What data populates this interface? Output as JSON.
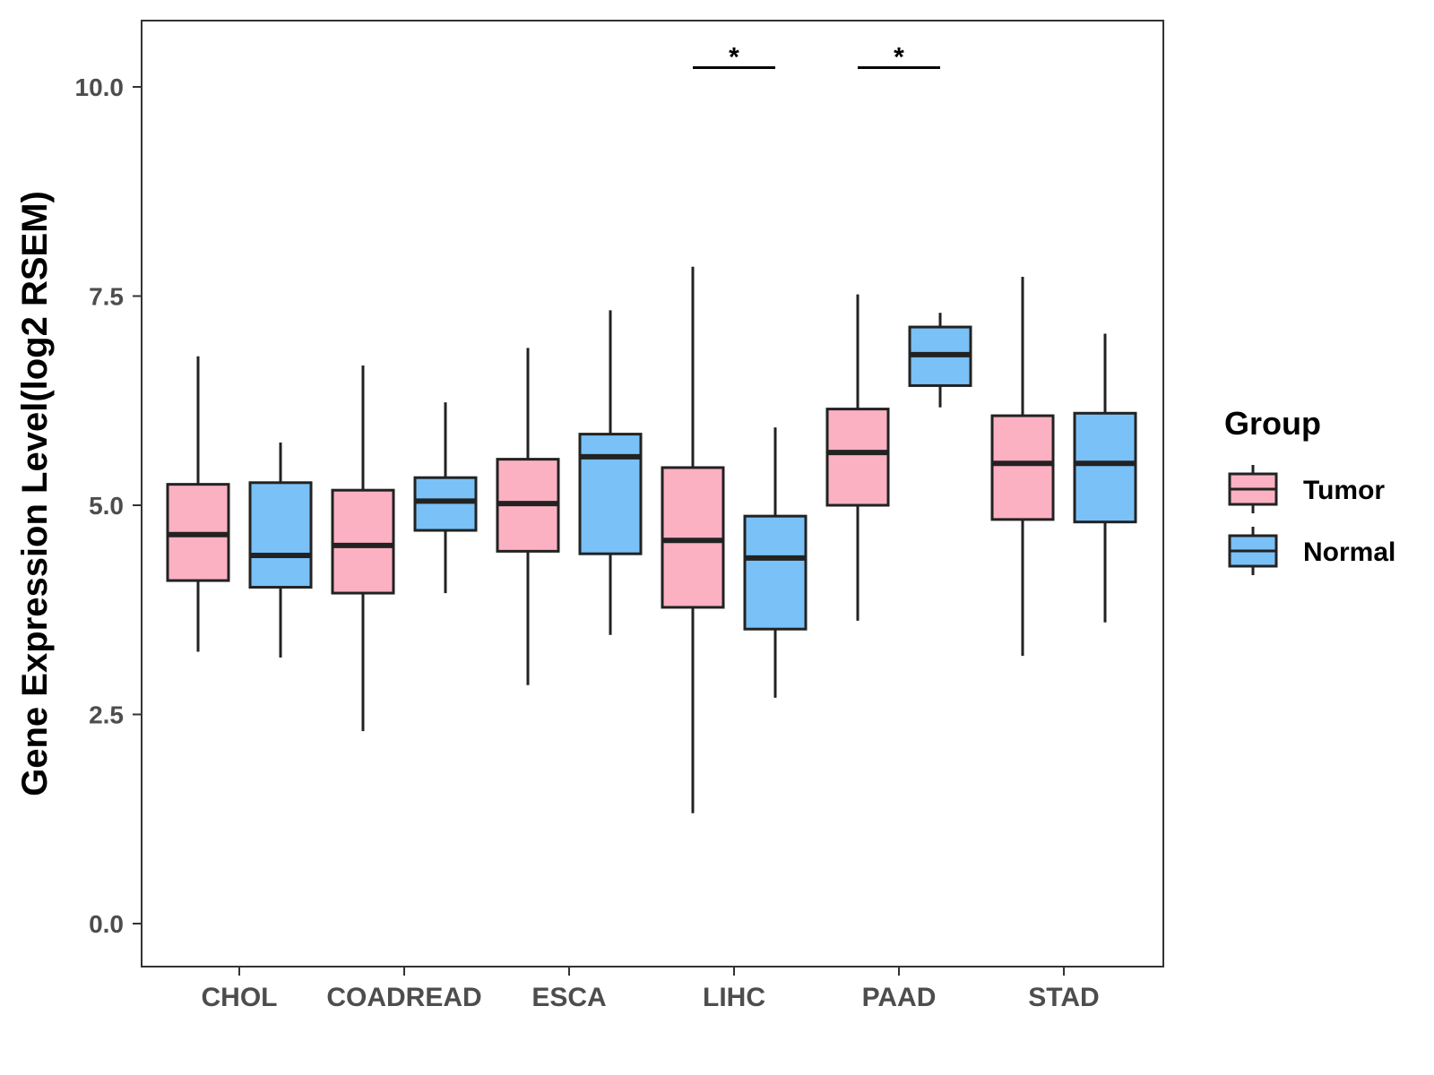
{
  "chart_data": {
    "type": "boxplot",
    "title": "",
    "xlabel": "",
    "ylabel": "Gene Expression Level(log2 RSEM)",
    "ylim": [
      -0.5,
      10.8
    ],
    "yticks": [
      0.0,
      2.5,
      5.0,
      7.5,
      10.0
    ],
    "ytick_labels": [
      "0.0",
      "2.5",
      "5.0",
      "7.5",
      "10.0"
    ],
    "categories": [
      "CHOL",
      "COADREAD",
      "ESCA",
      "LIHC",
      "PAAD",
      "STAD"
    ],
    "legend": {
      "title": "Group",
      "position": "right",
      "entries": [
        {
          "name": "Tumor",
          "color": "#FBB1C2"
        },
        {
          "name": "Normal",
          "color": "#79C1F7"
        }
      ]
    },
    "series": [
      {
        "name": "Tumor",
        "color": "#FBB1C2",
        "boxes": [
          {
            "category": "CHOL",
            "min": 3.25,
            "q1": 4.1,
            "median": 4.65,
            "q3": 5.25,
            "max": 6.78
          },
          {
            "category": "COADREAD",
            "min": 2.3,
            "q1": 3.95,
            "median": 4.52,
            "q3": 5.18,
            "max": 6.67
          },
          {
            "category": "ESCA",
            "min": 2.85,
            "q1": 4.45,
            "median": 5.02,
            "q3": 5.55,
            "max": 6.88
          },
          {
            "category": "LIHC",
            "min": 1.32,
            "q1": 3.78,
            "median": 4.58,
            "q3": 5.45,
            "max": 7.85
          },
          {
            "category": "PAAD",
            "min": 3.62,
            "q1": 5.0,
            "median": 5.63,
            "q3": 6.15,
            "max": 7.52
          },
          {
            "category": "STAD",
            "min": 3.2,
            "q1": 4.83,
            "median": 5.5,
            "q3": 6.07,
            "max": 7.73
          }
        ]
      },
      {
        "name": "Normal",
        "color": "#79C1F7",
        "boxes": [
          {
            "category": "CHOL",
            "min": 3.18,
            "q1": 4.02,
            "median": 4.4,
            "q3": 5.27,
            "max": 5.75
          },
          {
            "category": "COADREAD",
            "min": 3.95,
            "q1": 4.7,
            "median": 5.05,
            "q3": 5.33,
            "max": 6.23
          },
          {
            "category": "ESCA",
            "min": 3.45,
            "q1": 4.42,
            "median": 5.58,
            "q3": 5.85,
            "max": 7.33
          },
          {
            "category": "LIHC",
            "min": 2.7,
            "q1": 3.52,
            "median": 4.37,
            "q3": 4.87,
            "max": 5.93
          },
          {
            "category": "PAAD",
            "min": 6.17,
            "q1": 6.43,
            "median": 6.8,
            "q3": 7.13,
            "max": 7.3
          },
          {
            "category": "STAD",
            "min": 3.6,
            "q1": 4.8,
            "median": 5.5,
            "q3": 6.1,
            "max": 7.05
          }
        ]
      }
    ],
    "annotations": [
      {
        "category": "LIHC",
        "label": "*",
        "y": 10.23
      },
      {
        "category": "PAAD",
        "label": "*",
        "y": 10.23
      }
    ],
    "grid": false
  }
}
